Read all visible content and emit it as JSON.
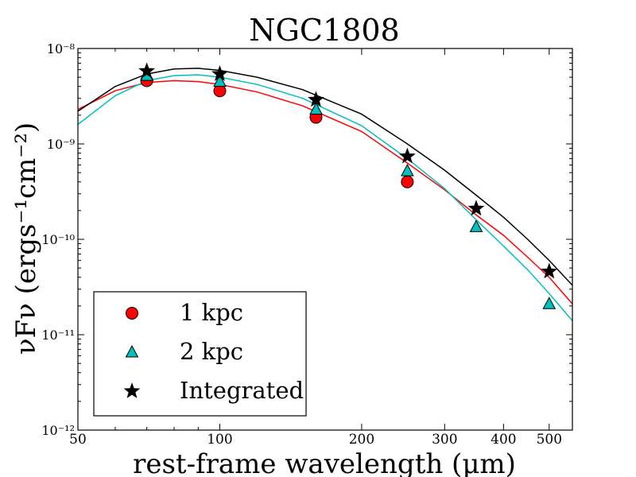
{
  "chart_data": {
    "type": "scatter",
    "title": "NGC1808",
    "xlabel": "rest-frame wavelength (μm)",
    "ylabel": "νFν (ergs⁻¹cm⁻²)",
    "xscale": "log",
    "yscale": "log",
    "xlim": [
      50,
      560
    ],
    "ylim": [
      1e-12,
      1e-08
    ],
    "xticks": [
      {
        "value": 50,
        "label": "50"
      },
      {
        "value": 100,
        "label": "100"
      },
      {
        "value": 200,
        "label": "200"
      },
      {
        "value": 300,
        "label": "300"
      },
      {
        "value": 400,
        "label": "400"
      },
      {
        "value": 500,
        "label": "500"
      }
    ],
    "yticks": [
      {
        "value": 1e-12,
        "label": "10⁻¹²"
      },
      {
        "value": 1e-11,
        "label": "10⁻¹¹"
      },
      {
        "value": 1e-10,
        "label": "10⁻¹⁰"
      },
      {
        "value": 1e-09,
        "label": "10⁻⁹"
      },
      {
        "value": 1e-08,
        "label": "10⁻⁸"
      }
    ],
    "legend_position": "lower-left",
    "series": [
      {
        "name": "1 kpc",
        "marker": "circle",
        "color": "#ff0000",
        "points": [
          {
            "x": 70,
            "y": 4.6e-09
          },
          {
            "x": 100,
            "y": 3.6e-09
          },
          {
            "x": 160,
            "y": 1.9e-09
          },
          {
            "x": 250,
            "y": 4e-10
          }
        ],
        "fit": [
          {
            "x": 50,
            "y": 2.3e-09
          },
          {
            "x": 60,
            "y": 3.6e-09
          },
          {
            "x": 70,
            "y": 4.4e-09
          },
          {
            "x": 80,
            "y": 4.6e-09
          },
          {
            "x": 90,
            "y": 4.5e-09
          },
          {
            "x": 100,
            "y": 4.2e-09
          },
          {
            "x": 120,
            "y": 3.5e-09
          },
          {
            "x": 150,
            "y": 2.5e-09
          },
          {
            "x": 200,
            "y": 1.35e-09
          },
          {
            "x": 250,
            "y": 6.3e-10
          },
          {
            "x": 300,
            "y": 3.3e-10
          },
          {
            "x": 350,
            "y": 1.8e-10
          },
          {
            "x": 400,
            "y": 1.1e-10
          },
          {
            "x": 450,
            "y": 6.5e-11
          },
          {
            "x": 500,
            "y": 4e-11
          },
          {
            "x": 560,
            "y": 2.1e-11
          }
        ]
      },
      {
        "name": "2 kpc",
        "marker": "triangle",
        "color": "#00bfbf",
        "points": [
          {
            "x": 70,
            "y": 5.2e-09
          },
          {
            "x": 100,
            "y": 4.5e-09
          },
          {
            "x": 160,
            "y": 2.3e-09
          },
          {
            "x": 250,
            "y": 5.2e-10
          },
          {
            "x": 350,
            "y": 1.35e-10
          },
          {
            "x": 500,
            "y": 2.1e-11
          }
        ],
        "fit": [
          {
            "x": 50,
            "y": 1.6e-09
          },
          {
            "x": 60,
            "y": 3.2e-09
          },
          {
            "x": 70,
            "y": 4.6e-09
          },
          {
            "x": 80,
            "y": 5.2e-09
          },
          {
            "x": 90,
            "y": 5.3e-09
          },
          {
            "x": 100,
            "y": 5e-09
          },
          {
            "x": 120,
            "y": 4.2e-09
          },
          {
            "x": 150,
            "y": 3e-09
          },
          {
            "x": 200,
            "y": 1.55e-09
          },
          {
            "x": 250,
            "y": 7e-10
          },
          {
            "x": 300,
            "y": 3.4e-10
          },
          {
            "x": 350,
            "y": 1.6e-10
          },
          {
            "x": 400,
            "y": 8.5e-11
          },
          {
            "x": 450,
            "y": 4.8e-11
          },
          {
            "x": 500,
            "y": 2.7e-11
          },
          {
            "x": 560,
            "y": 1.4e-11
          }
        ]
      },
      {
        "name": "Integrated",
        "marker": "star",
        "color": "#000000",
        "points": [
          {
            "x": 70,
            "y": 5.8e-09
          },
          {
            "x": 100,
            "y": 5.4e-09
          },
          {
            "x": 160,
            "y": 2.9e-09
          },
          {
            "x": 250,
            "y": 7.4e-10
          },
          {
            "x": 350,
            "y": 2.1e-10
          },
          {
            "x": 500,
            "y": 4.6e-11
          }
        ],
        "fit": [
          {
            "x": 50,
            "y": 2.2e-09
          },
          {
            "x": 60,
            "y": 4e-09
          },
          {
            "x": 70,
            "y": 5.4e-09
          },
          {
            "x": 80,
            "y": 6.1e-09
          },
          {
            "x": 90,
            "y": 6.2e-09
          },
          {
            "x": 100,
            "y": 5.9e-09
          },
          {
            "x": 120,
            "y": 5e-09
          },
          {
            "x": 150,
            "y": 3.7e-09
          },
          {
            "x": 200,
            "y": 2.05e-09
          },
          {
            "x": 250,
            "y": 1e-09
          },
          {
            "x": 300,
            "y": 5.3e-10
          },
          {
            "x": 350,
            "y": 2.9e-10
          },
          {
            "x": 400,
            "y": 1.7e-10
          },
          {
            "x": 450,
            "y": 1e-10
          },
          {
            "x": 500,
            "y": 6e-11
          },
          {
            "x": 560,
            "y": 3.3e-11
          }
        ]
      }
    ]
  }
}
